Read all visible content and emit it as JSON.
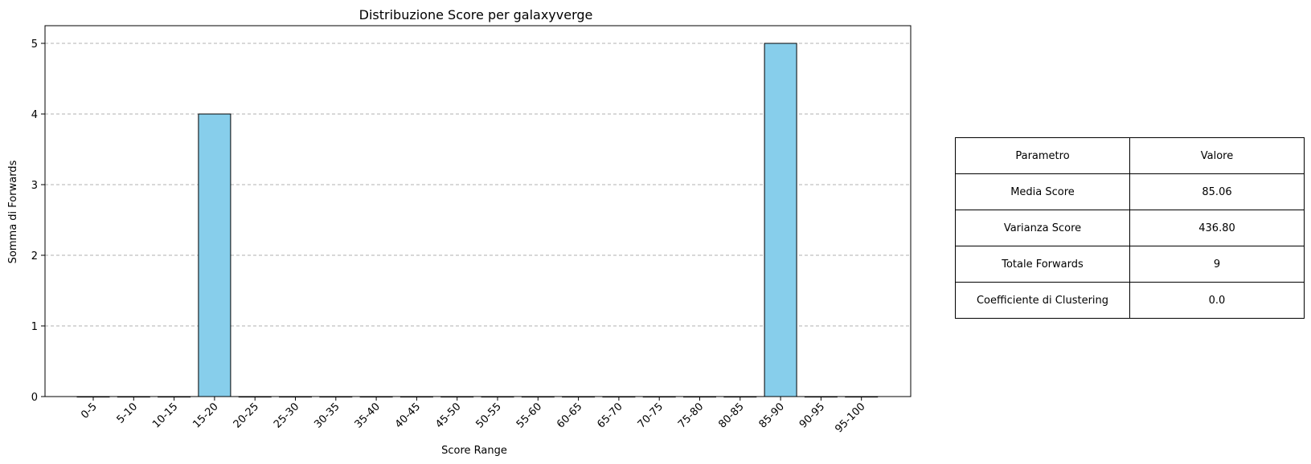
{
  "chart_data": {
    "type": "bar",
    "title": "Distribuzione Score per galaxyverge",
    "xlabel": "Score Range",
    "ylabel": "Somma di Forwards",
    "categories": [
      "0-5",
      "5-10",
      "10-15",
      "15-20",
      "20-25",
      "25-30",
      "30-35",
      "35-40",
      "40-45",
      "45-50",
      "50-55",
      "55-60",
      "60-65",
      "65-70",
      "70-75",
      "75-80",
      "80-85",
      "85-90",
      "90-95",
      "95-100"
    ],
    "values": [
      0,
      0,
      0,
      4,
      0,
      0,
      0,
      0,
      0,
      0,
      0,
      0,
      0,
      0,
      0,
      0,
      0,
      5,
      0,
      0
    ],
    "ylim": [
      0,
      5.25
    ],
    "yticks": [
      0,
      1,
      2,
      3,
      4,
      5
    ],
    "grid": "y, dashed",
    "bar_color": "#87ceeb",
    "edge_color": "#000000",
    "legend": "none"
  },
  "table": {
    "header": [
      "Parametro",
      "Valore"
    ],
    "rows": [
      [
        "Media Score",
        "85.06"
      ],
      [
        "Varianza Score",
        "436.80"
      ],
      [
        "Totale Forwards",
        "9"
      ],
      [
        "Coefficiente di Clustering",
        "0.0"
      ]
    ]
  }
}
